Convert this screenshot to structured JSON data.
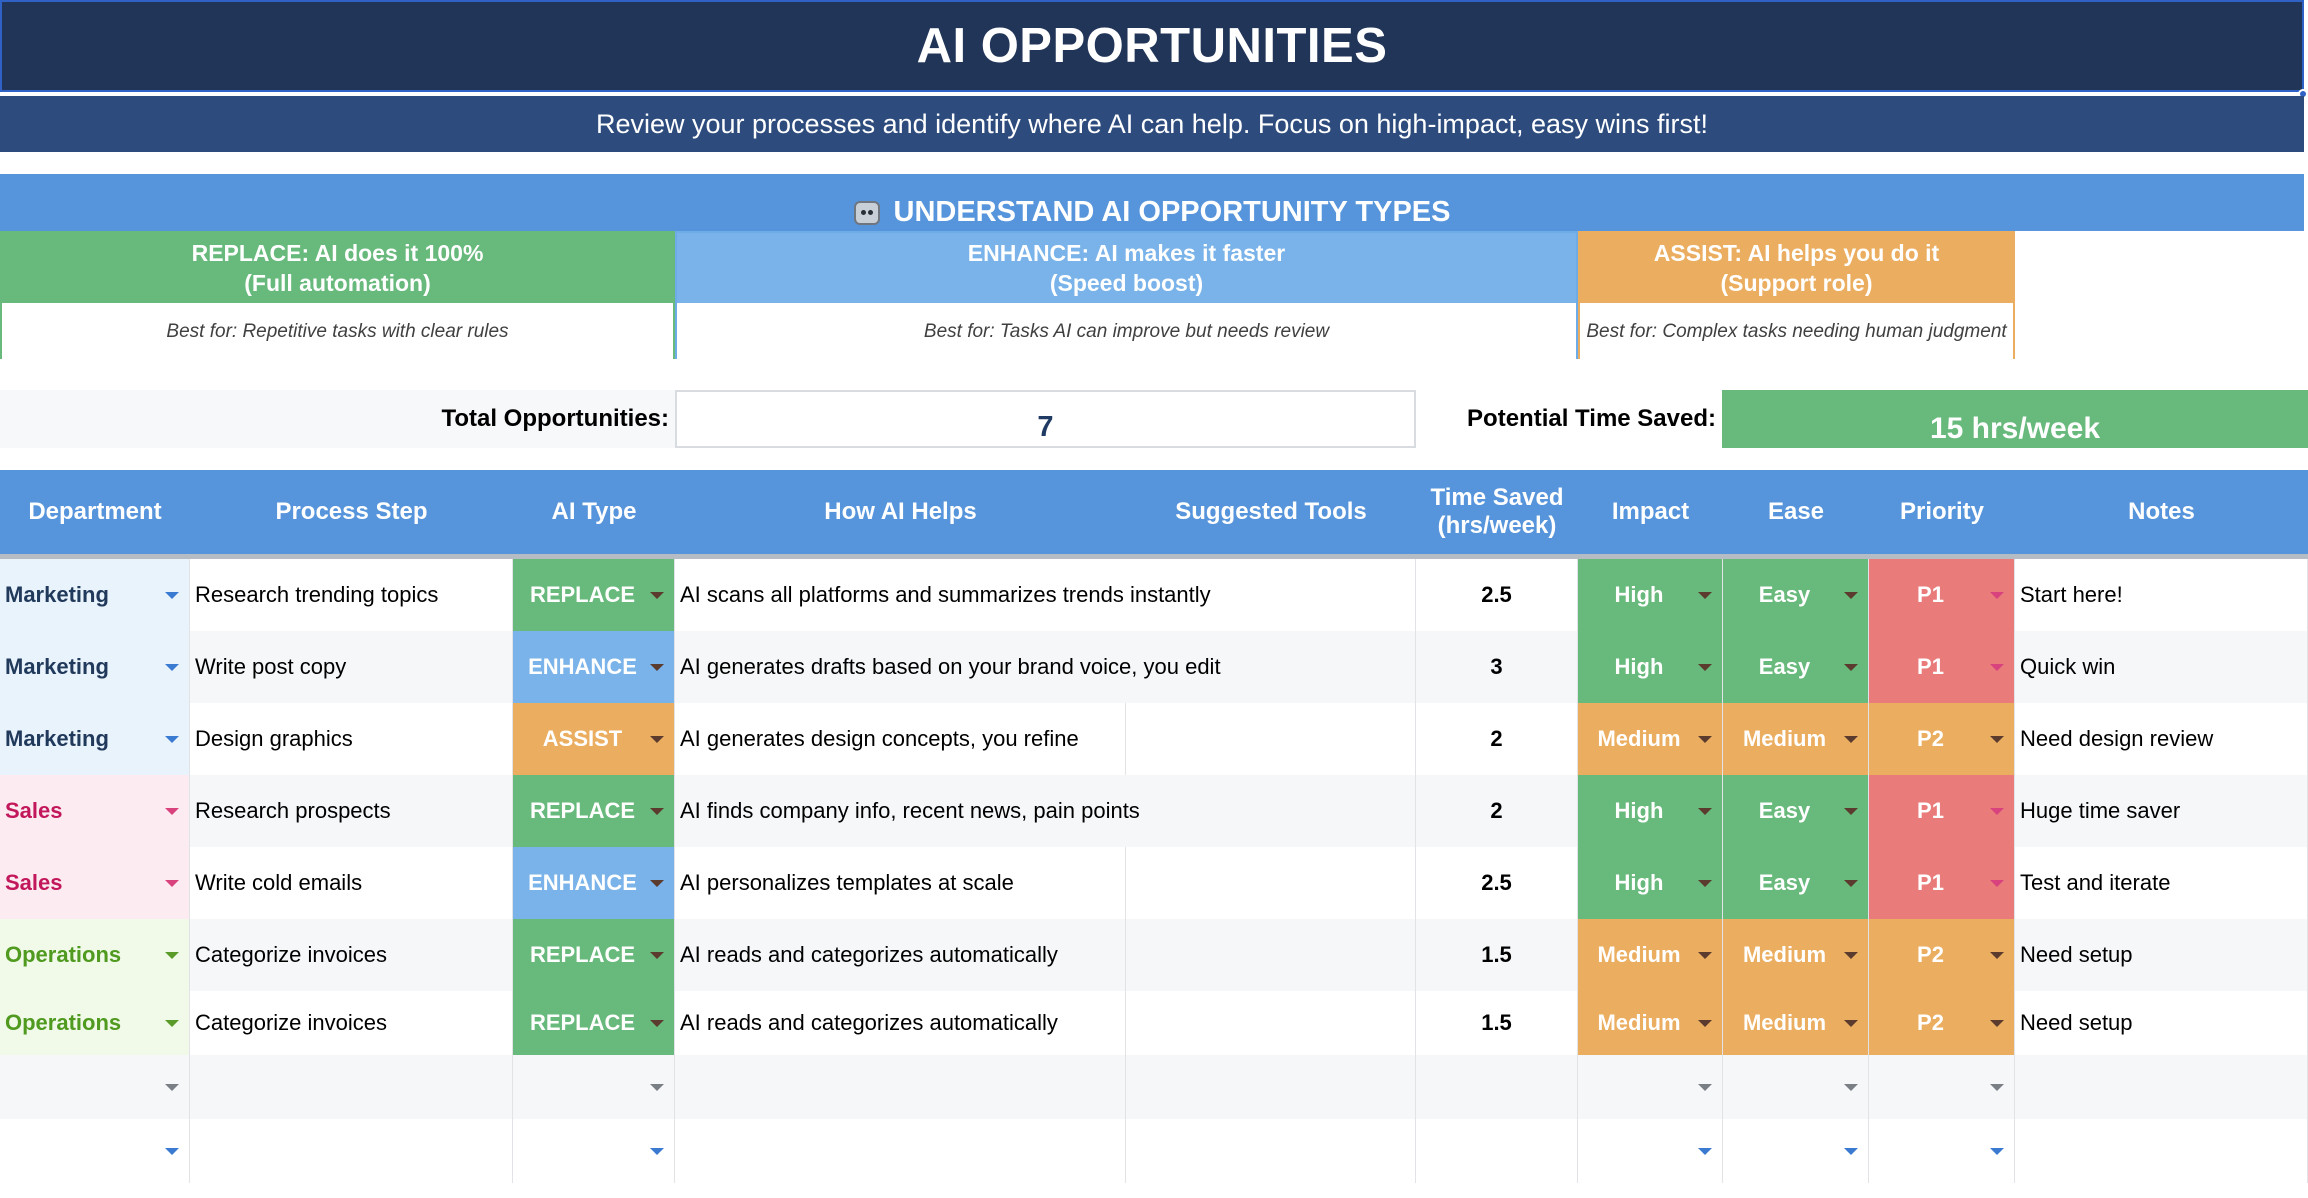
{
  "header": {
    "title": "AI OPPORTUNITIES",
    "subtitle": "Review your processes and identify where AI can help. Focus on high-impact, easy wins first!"
  },
  "understand": {
    "heading": "UNDERSTAND AI OPPORTUNITY TYPES",
    "icon": "robot-icon",
    "types": [
      {
        "line1": "REPLACE: AI does it 100%",
        "line2": "(Full automation)",
        "desc": "Best for: Repetitive tasks with clear rules",
        "color": "#68b97c"
      },
      {
        "line1": "ENHANCE: AI makes it faster",
        "line2": "(Speed boost)",
        "desc": "Best for: Tasks AI can improve but needs review",
        "color": "#7ab3e9"
      },
      {
        "line1": "ASSIST: AI helps you do it",
        "line2": "(Support role)",
        "desc": "Best for: Complex tasks needing human judgment",
        "color": "#ebad5f"
      }
    ]
  },
  "summary": {
    "total_label": "Total Opportunities:",
    "total_value": "7",
    "time_label": "Potential Time Saved:",
    "time_value": "15 hrs/week"
  },
  "table": {
    "headers": [
      "Department",
      "Process Step",
      "AI Type",
      "How AI Helps",
      "Suggested Tools",
      "Time Saved\n(hrs/week)",
      "Impact",
      "Ease",
      "Priority",
      "Notes"
    ],
    "rows": [
      {
        "dept": "Marketing",
        "step": "Research trending topics",
        "type": "REPLACE",
        "how": "AI scans all platforms and summarizes trends instantly",
        "tools": "",
        "time": "2.5",
        "impact": "High",
        "ease": "Easy",
        "priority": "P1",
        "notes": "Start here!"
      },
      {
        "dept": "Marketing",
        "step": "Write post copy",
        "type": "ENHANCE",
        "how": "AI generates drafts based on your brand voice, you edit",
        "tools": "",
        "time": "3",
        "impact": "High",
        "ease": "Easy",
        "priority": "P1",
        "notes": "Quick win"
      },
      {
        "dept": "Marketing",
        "step": "Design graphics",
        "type": "ASSIST",
        "how": "AI generates design concepts, you refine",
        "tools": "",
        "time": "2",
        "impact": "Medium",
        "ease": "Medium",
        "priority": "P2",
        "notes": "Need design review"
      },
      {
        "dept": "Sales",
        "step": "Research prospects",
        "type": "REPLACE",
        "how": "AI finds company info, recent news, pain points",
        "tools": "",
        "time": "2",
        "impact": "High",
        "ease": "Easy",
        "priority": "P1",
        "notes": "Huge time saver"
      },
      {
        "dept": "Sales",
        "step": "Write cold emails",
        "type": "ENHANCE",
        "how": "AI personalizes templates at scale",
        "tools": "",
        "time": "2.5",
        "impact": "High",
        "ease": "Easy",
        "priority": "P1",
        "notes": "Test and iterate"
      },
      {
        "dept": "Operations",
        "step": "Categorize invoices",
        "type": "REPLACE",
        "how": "AI reads and categorizes automatically",
        "tools": "",
        "time": "1.5",
        "impact": "Medium",
        "ease": "Medium",
        "priority": "P2",
        "notes": "Need setup"
      },
      {
        "dept": "Operations",
        "step": "Categorize invoices",
        "type": "REPLACE",
        "how": "AI reads and categorizes automatically",
        "tools": "",
        "time": "1.5",
        "impact": "Medium",
        "ease": "Medium",
        "priority": "P2",
        "notes": "Need setup"
      }
    ]
  },
  "colors": {
    "title_bg": "#213559",
    "subtitle_bg": "#2d4c7d",
    "header_blue": "#5694db",
    "replace": "#68b97c",
    "enhance": "#7ab3e9",
    "assist": "#ebad5f",
    "high": "#68b97c",
    "easy": "#68b97c",
    "medium": "#ebad5f",
    "p1": "#e97c7a",
    "p2": "#ebad5f",
    "dept_marketing_text": "#213a5c",
    "dept_marketing_bg": "#e8f3fc",
    "dept_sales_text": "#c2185b",
    "dept_sales_bg": "#fcecf1",
    "dept_operations_text": "#4f9a1f",
    "dept_operations_bg": "#f1f9e9"
  }
}
